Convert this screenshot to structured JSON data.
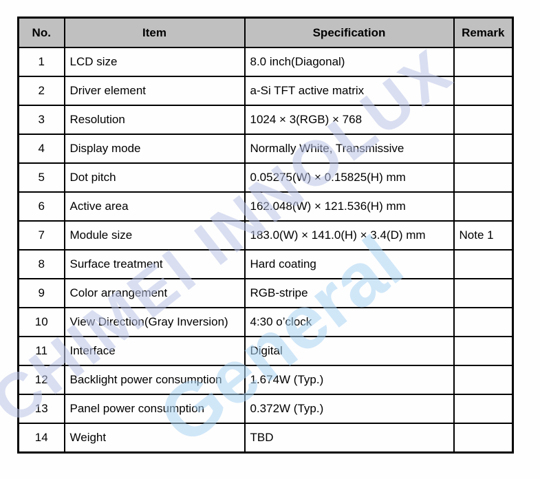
{
  "table": {
    "headers": [
      "No.",
      "Item",
      "Specification",
      "Remark"
    ],
    "rows": [
      {
        "no": "1",
        "item": "LCD size",
        "spec": "8.0 inch(Diagonal)",
        "remark": ""
      },
      {
        "no": "2",
        "item": "Driver element",
        "spec": "a-Si TFT active matrix",
        "remark": ""
      },
      {
        "no": "3",
        "item": "Resolution",
        "spec": "1024 × 3(RGB) × 768",
        "remark": ""
      },
      {
        "no": "4",
        "item": "Display mode",
        "spec": "Normally White, Transmissive",
        "remark": ""
      },
      {
        "no": "5",
        "item": "Dot pitch",
        "spec": "0.05275(W) × 0.15825(H) mm",
        "remark": ""
      },
      {
        "no": "6",
        "item": "Active area",
        "spec": "162.048(W) × 121.536(H) mm",
        "remark": ""
      },
      {
        "no": "7",
        "item": "Module size",
        "spec": "183.0(W) × 141.0(H) × 3.4(D) mm",
        "remark": "Note 1"
      },
      {
        "no": "8",
        "item": "Surface treatment",
        "spec": "Hard coating",
        "remark": ""
      },
      {
        "no": "9",
        "item": "Color arrangement",
        "spec": "RGB-stripe",
        "remark": ""
      },
      {
        "no": "10",
        "item": "View Direction(Gray Inversion)",
        "spec": "4:30   o’clock",
        "remark": ""
      },
      {
        "no": "11",
        "item": "Interface",
        "spec": "Digital",
        "remark": ""
      },
      {
        "no": "12",
        "item": "Backlight power consumption",
        "spec": "1.674W (Typ.)",
        "remark": ""
      },
      {
        "no": "13",
        "item": "Panel power consumption",
        "spec": "0.372W (Typ.)",
        "remark": ""
      },
      {
        "no": "14",
        "item": "Weight",
        "spec": "TBD",
        "remark": ""
      }
    ]
  },
  "watermark": {
    "line1": "CHIMEI INNOLUX",
    "line2": "General",
    "colors": {
      "line1": "#b9c2e6",
      "line2": "#a9d4f2",
      "accent_red": "#f2b9b9",
      "accent_green": "#bfe6bf"
    }
  }
}
